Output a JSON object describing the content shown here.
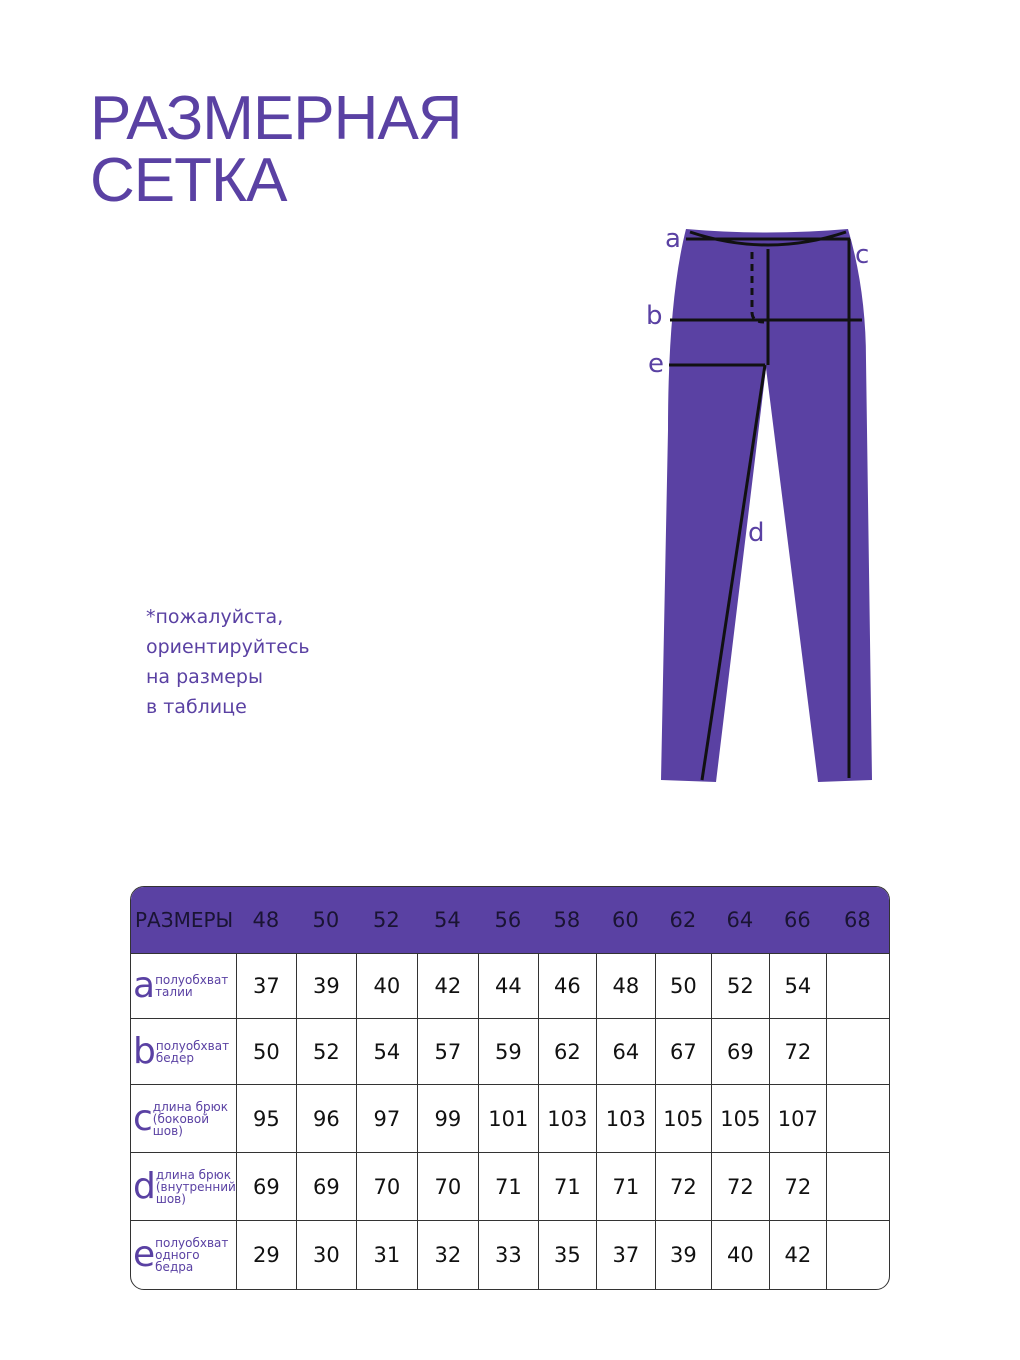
{
  "title": {
    "line1": "РАЗМЕРНАЯ",
    "line2": "СЕТКА"
  },
  "note": [
    "*пожалуйста,",
    "ориентируйтесь",
    "на размеры",
    "в таблице"
  ],
  "diagram": {
    "labels": [
      "a",
      "b",
      "c",
      "d",
      "e"
    ],
    "fill_color": "#5a41a3"
  },
  "table": {
    "header_label": "РАЗМЕРЫ",
    "sizes": [
      "48",
      "50",
      "52",
      "54",
      "56",
      "58",
      "60",
      "62",
      "64",
      "66",
      "68"
    ],
    "rows": [
      {
        "letter": "a",
        "desc": [
          "полуобхват",
          "талии"
        ],
        "values": [
          "37",
          "39",
          "40",
          "42",
          "44",
          "46",
          "48",
          "50",
          "52",
          "54",
          ""
        ]
      },
      {
        "letter": "b",
        "desc": [
          "полуобхват",
          "бедер"
        ],
        "values": [
          "50",
          "52",
          "54",
          "57",
          "59",
          "62",
          "64",
          "67",
          "69",
          "72",
          ""
        ]
      },
      {
        "letter": "c",
        "desc": [
          "длина брюк",
          "(боковой",
          "шов)"
        ],
        "values": [
          "95",
          "96",
          "97",
          "99",
          "101",
          "103",
          "103",
          "105",
          "105",
          "107",
          ""
        ]
      },
      {
        "letter": "d",
        "desc": [
          "длина брюк",
          "(внутренний",
          "шов)"
        ],
        "values": [
          "69",
          "69",
          "70",
          "70",
          "71",
          "71",
          "71",
          "72",
          "72",
          "72",
          ""
        ]
      },
      {
        "letter": "e",
        "desc": [
          "полуобхват",
          "одного",
          "бедра"
        ],
        "values": [
          "29",
          "30",
          "31",
          "32",
          "33",
          "35",
          "37",
          "39",
          "40",
          "42",
          ""
        ]
      }
    ]
  }
}
